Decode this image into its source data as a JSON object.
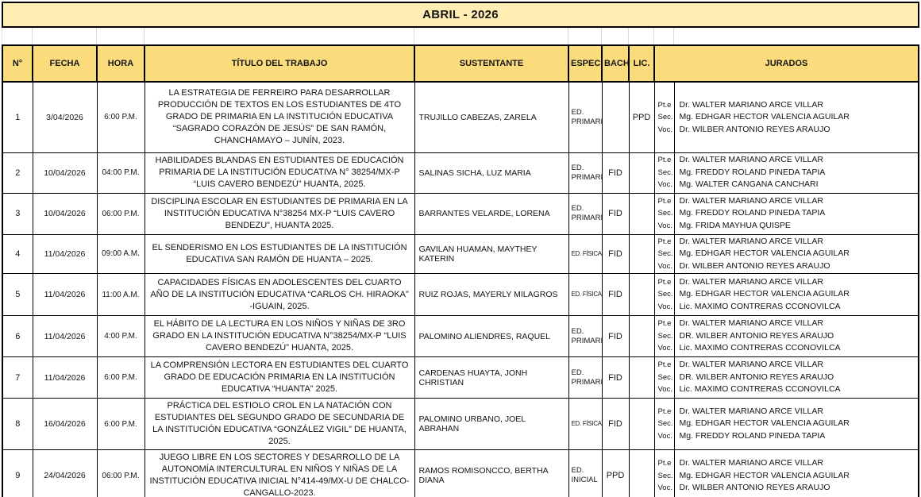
{
  "title": "ABRIL - 2026",
  "columns": {
    "num": "N°",
    "fecha": "FECHA",
    "hora": "HORA",
    "titulo": "TÍTULO DEL TRABAJO",
    "sustentante": "SUSTENTANTE",
    "espec": "ESPEC.",
    "bach": "BACH.",
    "lic": "LIC.",
    "jurados": "JURADOS"
  },
  "jurado_roles": [
    "Pt.e",
    "Sec.",
    "Voc."
  ],
  "colors": {
    "header_fill": "#fbdc7d",
    "title_fill": "#ffedb3",
    "border": "#000000"
  },
  "rows": [
    {
      "n": "1",
      "fecha": "3/04/2026",
      "hora": "6:00 P.M.",
      "titulo": "LA ESTRATEGIA DE FERREIRO PARA DESARROLLAR PRODUCCIÓN DE TEXTOS EN LOS ESTUDIANTES DE 4TO GRADO DE PRIMARIA EN LA INSTITUCIÓN EDUCATIVA “SAGRADO CORAZÓN DE JESÚS” DE SAN RAMÓN, CHANCHAMAYO – JUNÍN, 2023.",
      "sustentante": "TRUJILLO CABEZAS, ZARELA",
      "espec": "ED. PRIMARIA",
      "bach": "",
      "lic": "PPD",
      "jurados": [
        "Dr. WALTER MARIANO ARCE VILLAR",
        "Mg. EDHGAR HECTOR VALENCIA AGUILAR",
        "Dr. WILBER ANTONIO REYES ARAUJO"
      ]
    },
    {
      "n": "2",
      "fecha": "10/04/2026",
      "hora": "04:00 P.M.",
      "titulo": "HABILIDADES BLANDAS EN ESTUDIANTES DE EDUCACIÓN PRIMARIA DE LA INSTITUCIÓN EDUCATIVA N° 38254/MX-P “LUIS CAVERO BENDEZÚ” HUANTA, 2025.",
      "sustentante": "SALINAS SICHA, LUZ MARIA",
      "espec": "ED. PRIMARIA",
      "bach": "FID",
      "lic": "",
      "jurados": [
        "Dr. WALTER MARIANO ARCE VILLAR",
        "Mg. FREDDY ROLAND PINEDA TAPIA",
        "Mg. WALTER CANGANA CANCHARI"
      ]
    },
    {
      "n": "3",
      "fecha": "10/04/2026",
      "hora": "06:00 P.M.",
      "titulo": "DISCIPLINA ESCOLAR EN ESTUDIANTES DE PRIMARIA EN LA INSTITUCIÓN EDUCATIVA N°38254 MX-P “LUIS CAVERO BENDEZU”, HUANTA 2025.",
      "sustentante": "BARRANTES VELARDE, LORENA",
      "espec": "ED. PRIMARIA",
      "bach": "FID",
      "lic": "",
      "jurados": [
        "Dr. WALTER MARIANO ARCE VILLAR",
        "Mg. FREDDY ROLAND PINEDA TAPIA",
        "Mg. FRIDA MAYHUA QUISPE"
      ]
    },
    {
      "n": "4",
      "fecha": "11/04/2026",
      "hora": "09:00 A.M.",
      "titulo": "EL SENDERISMO EN LOS ESTUDIANTES DE LA INSTITUCIÓN EDUCATIVA SAN RAMÓN DE HUANTA – 2025.",
      "sustentante": "GAVILAN HUAMAN, MAYTHEY KATERIN",
      "espec": "ED. FÍSICA",
      "bach": "FID",
      "lic": "",
      "jurados": [
        "Dr. WALTER MARIANO ARCE VILLAR",
        "Mg. EDHGAR HECTOR VALENCIA AGUILAR",
        "Dr. WILBER ANTONIO REYES ARAUJO"
      ]
    },
    {
      "n": "5",
      "fecha": "11/04/2026",
      "hora": "11:00 A.M.",
      "titulo": "CAPACIDADES FÍSICAS EN ADOLESCENTES DEL CUARTO AÑO DE LA INSTITUCIÓN EDUCATIVA “CARLOS CH. HIRAOKA” -IGUAIN, 2025.",
      "sustentante": "RUIZ ROJAS, MAYERLY MILAGROS",
      "espec": "ED. FÍSICA",
      "bach": "FID",
      "lic": "",
      "jurados": [
        "Dr. WALTER MARIANO ARCE VILLAR",
        "Mg. EDHGAR HECTOR VALENCIA AGUILAR",
        "Lic. MAXIMO CONTRERAS CCONOVILCA"
      ]
    },
    {
      "n": "6",
      "fecha": "11/04/2026",
      "hora": "4:00 P.M.",
      "titulo": "EL HÁBITO DE LA LECTURA EN LOS NIÑOS Y NIÑAS DE 3RO GRADO EN LA INSTITUCIÓN EDUCATIVA N°38254/MX-P “LUIS CAVERO BENDEZÚ” HUANTA, 2025.",
      "sustentante": "PALOMINO ALIENDRES, RAQUEL",
      "espec": "ED. PRIMARIA",
      "bach": "FID",
      "lic": "",
      "jurados": [
        "Dr. WALTER MARIANO ARCE VILLAR",
        "DR. WILBER ANTONIO REYES ARAUJO",
        "Lic. MAXIMO CONTRERAS CCONOVILCA"
      ]
    },
    {
      "n": "7",
      "fecha": "11/04/2026",
      "hora": "6:00 P.M.",
      "titulo": "LA COMPRENSIÓN LECTORA EN ESTUDIANTES DEL CUARTO GRADO DE EDUCACIÓN PRIMARIA EN LA INSTITUCIÓN EDUCATIVA “HUANTA” 2025.",
      "sustentante": "CARDENAS HUAYTA, JONH CHRISTIAN",
      "espec": "ED. PRIMARIA",
      "bach": "FID",
      "lic": "",
      "jurados": [
        "Dr. WALTER MARIANO ARCE VILLAR",
        "DR. WILBER ANTONIO REYES ARAUJO",
        "Lic. MAXIMO CONTRERAS CCONOVILCA"
      ]
    },
    {
      "n": "8",
      "fecha": "16/04/2026",
      "hora": "6:00 P.M.",
      "titulo": "PRÁCTICA DEL ESTIOLO CROL EN LA NATACIÓN CON ESTUDIANTES DEL SEGUNDO GRADO DE SECUNDARIA DE LA INSTITUCIÓN EDUCATIVA “GONZÁLEZ VIGIL” DE HUANTA, 2025.",
      "sustentante": "PALOMINO URBANO, JOEL ABRAHAN",
      "espec": "ED. FÍSICA",
      "bach": "FID",
      "lic": "",
      "jurados": [
        "Dr. WALTER MARIANO ARCE VILLAR",
        "Mg. EDHGAR HECTOR VALENCIA AGUILAR",
        "Mg. FREDDY ROLAND PINEDA TAPIA"
      ]
    },
    {
      "n": "9",
      "fecha": "24/04/2026",
      "hora": "06:00 P.M.",
      "titulo": "JUEGO LIBRE EN LOS SECTORES Y DESARROLLO DE LA AUTONOMÍA INTERCULTURAL EN NIÑOS Y NIÑAS DE LA INSTITUCIÓN EDUCATIVA INICIAL N°414-49/MX-U DE CHALCO-CANGALLO-2023.",
      "sustentante": "RAMOS ROMISONCCO, BERTHA DIANA",
      "espec": "ED. INICIAL",
      "bach": "PPD",
      "lic": "",
      "jurados": [
        "Dr. WALTER MARIANO ARCE VILLAR",
        "Mg. EDHGAR HECTOR VALENCIA AGUILAR",
        "Dr. WILBER ANTONIO REYES ARAUJO"
      ]
    }
  ]
}
